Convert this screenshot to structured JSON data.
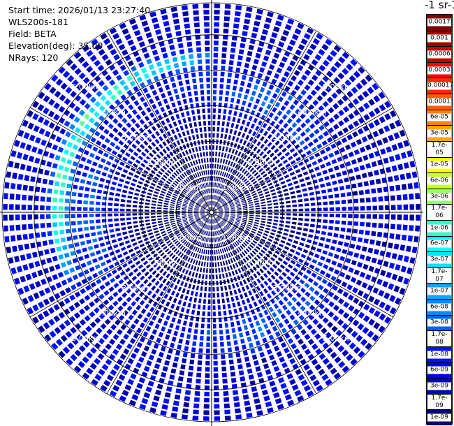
{
  "header": {
    "start_time": "Start time: 2026/01/13 23:27:40",
    "device": "WLS200s-181",
    "field": "Field: BETA",
    "elevation": "Elevation(deg): 35.00",
    "nrays": "NRays: 120"
  },
  "colorbar": {
    "title": "-1 sr-1",
    "labels": [
      "0.0017",
      "0.001",
      "0.0006",
      "0.0003",
      "0.00017",
      "0.0001",
      "6e-05",
      "3e-05",
      "1.7e-05",
      "1e-05",
      "6e-06",
      "3e-06",
      "1.7e-06",
      "1e-06",
      "6e-07",
      "3e-07",
      "1.7e-07",
      "1e-07",
      "6e-08",
      "3e-08",
      "1.7e-08",
      "1e-08",
      "6e-09",
      "3e-09",
      "1.7e-09",
      "1e-09"
    ],
    "colors": [
      "#7f0000",
      "#a00000",
      "#c80000",
      "#ff0000",
      "#ff2800",
      "#ff5a00",
      "#ff8200",
      "#ffa500",
      "#ffcc00",
      "#ffff00",
      "#c8ff32",
      "#96ff64",
      "#64ff96",
      "#32ffc8",
      "#00ffff",
      "#00e4ff",
      "#00c8ff",
      "#00a8ff",
      "#0088ff",
      "#0060ff",
      "#0030ff",
      "#0010ff",
      "#0000e8",
      "#0000c0",
      "#000098",
      "#000070"
    ]
  },
  "chart_data": {
    "type": "heatmap",
    "projection": "polar",
    "nrays": 120,
    "range_rings_km": [
      1,
      2,
      3,
      4,
      5
    ],
    "range_labels": [
      "1.00km",
      "2.00km",
      "3.00km",
      "4.00km",
      "5.00km"
    ],
    "max_range_km": 5.9,
    "field": "BETA",
    "value_range": [
      1e-09,
      0.0017
    ],
    "log_scale": true,
    "features": [
      {
        "description": "high backscatter arc",
        "range_km": [
          4.1,
          4.6
        ],
        "azimuth_deg": [
          250,
          355
        ],
        "peak_value": 1.7e-05
      },
      {
        "description": "moderate ring",
        "range_km": [
          2.9,
          4.0
        ],
        "azimuth_deg": [
          0,
          360
        ],
        "peak_value": 1e-07
      },
      {
        "description": "low near field",
        "range_km": [
          0,
          1.9
        ],
        "azimuth_deg": [
          0,
          360
        ],
        "peak_value": 6e-09
      }
    ]
  }
}
